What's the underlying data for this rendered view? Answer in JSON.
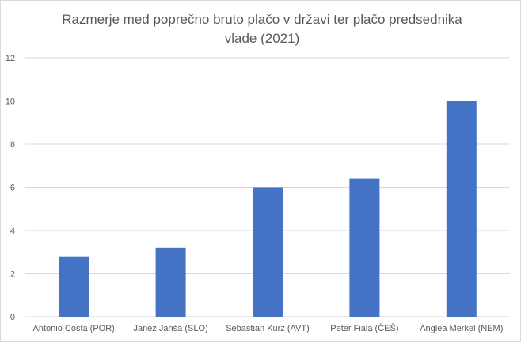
{
  "chart_data": {
    "type": "bar",
    "title": "Razmerje med poprečno bruto plačo v državi ter plačo predsednika vlade (2021)",
    "xlabel": "",
    "ylabel": "",
    "categories": [
      "António Costa (POR)",
      "Janez Janša (SLO)",
      "Sebastian Kurz (AVT)",
      "Peter Fiala (ČEŠ)",
      "Anglea Merkel (NEM)"
    ],
    "values": [
      2.8,
      3.2,
      6.0,
      6.4,
      10.0
    ],
    "ylim": [
      0,
      12
    ],
    "yticks": [
      "0",
      "2",
      "4",
      "6",
      "8",
      "10",
      "12"
    ],
    "grid": true,
    "legend": "none",
    "bar_color": "#4472c4",
    "grid_color": "#d9d9d9",
    "text_color": "#595959"
  }
}
